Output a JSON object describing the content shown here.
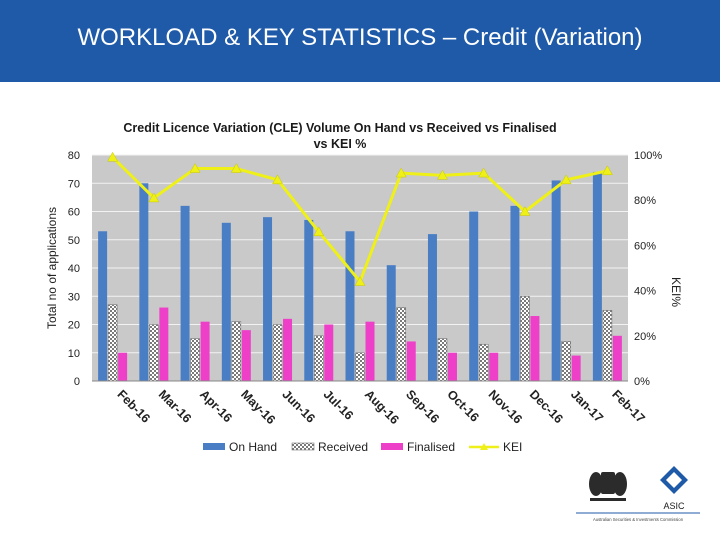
{
  "slide": {
    "title": "WORKLOAD & KEY STATISTICS – Credit (Variation)"
  },
  "colors": {
    "header": "#1f5aa8",
    "on_hand": "#4a7ec4",
    "received": "#d8d8d8",
    "finalised": "#ee3fc8",
    "kei": "#eef018",
    "plot_bg": "#c9c9c9"
  },
  "chart_data": {
    "type": "bar",
    "title_line1": "Credit Licence Variation  (CLE) Volume On Hand vs Received vs Finalised",
    "title_line2": "vs KEI %",
    "ylabel": "Total no of applications",
    "y2label": "KEI%",
    "ylim": [
      0,
      80
    ],
    "y2lim": [
      0,
      100
    ],
    "yticks": [
      "0",
      "10",
      "20",
      "30",
      "40",
      "50",
      "60",
      "70",
      "80"
    ],
    "y2ticks": [
      "0%",
      "20%",
      "40%",
      "60%",
      "80%",
      "100%"
    ],
    "grid": true,
    "legend_position": "bottom",
    "categories": [
      "Feb-16",
      "Mar-16",
      "Apr-16",
      "May-16",
      "Jun-16",
      "Jul-16",
      "Aug-16",
      "Sep-16",
      "Oct-16",
      "Nov-16",
      "Dec-16",
      "Jan-17",
      "Feb-17"
    ],
    "series": [
      {
        "name": "On Hand",
        "type": "bar",
        "values": [
          53,
          70,
          62,
          56,
          58,
          57,
          53,
          41,
          52,
          60,
          62,
          71,
          74
        ]
      },
      {
        "name": "Received",
        "type": "bar",
        "values": [
          27,
          20,
          15,
          21,
          20,
          16,
          10,
          26,
          15,
          13,
          30,
          14,
          25
        ]
      },
      {
        "name": "Finalised",
        "type": "bar",
        "values": [
          10,
          26,
          21,
          18,
          22,
          20,
          21,
          14,
          10,
          10,
          23,
          9,
          16
        ]
      },
      {
        "name": "KEI",
        "type": "line",
        "axis": "secondary",
        "values": [
          99,
          81,
          94,
          94,
          89,
          66,
          44,
          92,
          91,
          92,
          75,
          89,
          93
        ]
      }
    ]
  },
  "logo": {
    "brand": "ASIC",
    "tagline": "Australian Securities & Investments Commission"
  }
}
